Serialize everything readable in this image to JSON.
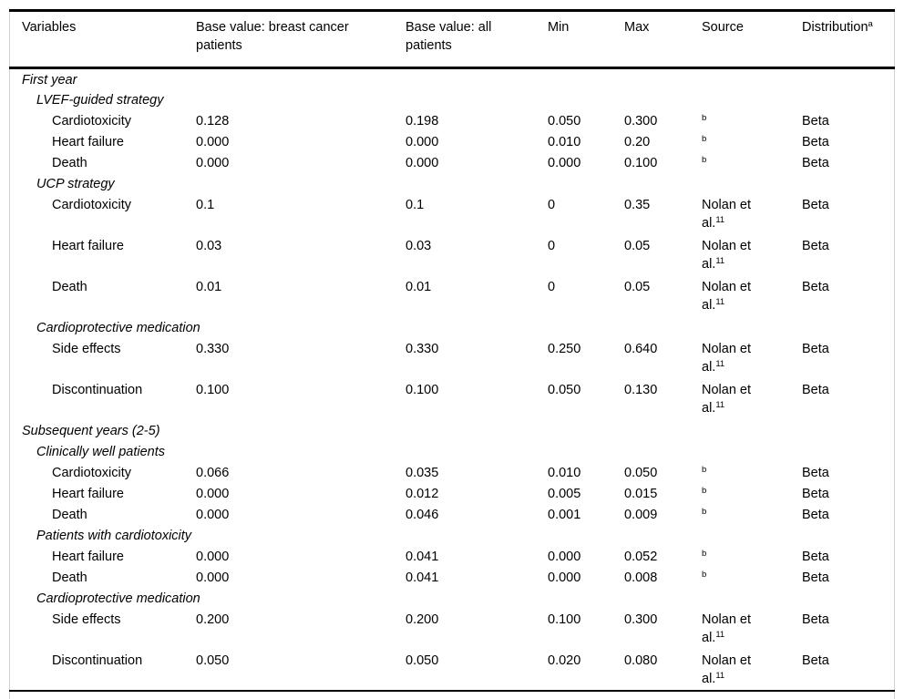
{
  "table": {
    "columns": [
      {
        "id": "variables",
        "label": "Variables"
      },
      {
        "id": "bval-bc",
        "label": "Base value: breast cancer patients"
      },
      {
        "id": "bval-all",
        "label": "Base value: all patients"
      },
      {
        "id": "min",
        "label": "Min"
      },
      {
        "id": "max",
        "label": "Max"
      },
      {
        "id": "source",
        "label": "Source"
      },
      {
        "id": "distribution",
        "label": "Distribution",
        "sup": "a"
      }
    ],
    "rows": [
      {
        "type": "section",
        "label": "First year"
      },
      {
        "type": "subsection",
        "label": "LVEF-guided strategy"
      },
      {
        "type": "data",
        "label": "Cardiotoxicity",
        "base_breast": "0.128",
        "base_all": "0.198",
        "min": "0.050",
        "max": "0.300",
        "source": "",
        "source_sup": "b",
        "distribution": "Beta"
      },
      {
        "type": "data",
        "label": "Heart failure",
        "base_breast": "0.000",
        "base_all": "0.000",
        "min": "0.010",
        "max": "0.20",
        "source": "",
        "source_sup": "b",
        "distribution": "Beta"
      },
      {
        "type": "data",
        "label": "Death",
        "base_breast": "0.000",
        "base_all": "0.000",
        "min": "0.000",
        "max": "0.100",
        "source": "",
        "source_sup": "b",
        "distribution": "Beta"
      },
      {
        "type": "subsection",
        "label": "UCP strategy"
      },
      {
        "type": "data",
        "label": "Cardiotoxicity",
        "base_breast": "0.1",
        "base_all": "0.1",
        "min": "0",
        "max": "0.35",
        "source": "Nolan et al.",
        "source_sup": "11",
        "distribution": "Beta"
      },
      {
        "type": "data",
        "label": "Heart failure",
        "base_breast": "0.03",
        "base_all": "0.03",
        "min": "0",
        "max": "0.05",
        "source": "Nolan et al.",
        "source_sup": "11",
        "distribution": "Beta"
      },
      {
        "type": "data",
        "label": "Death",
        "base_breast": "0.01",
        "base_all": "0.01",
        "min": "0",
        "max": "0.05",
        "source": "Nolan et al.",
        "source_sup": "11",
        "distribution": "Beta"
      },
      {
        "type": "subsection",
        "label": "Cardioprotective medication"
      },
      {
        "type": "data",
        "label": "Side effects",
        "base_breast": "0.330",
        "base_all": "0.330",
        "min": "0.250",
        "max": "0.640",
        "source": "Nolan et al.",
        "source_sup": "11",
        "distribution": "Beta"
      },
      {
        "type": "data",
        "label": "Discontinuation",
        "base_breast": "0.100",
        "base_all": "0.100",
        "min": "0.050",
        "max": "0.130",
        "source": "Nolan et al.",
        "source_sup": "11",
        "distribution": "Beta"
      },
      {
        "type": "section",
        "label": "Subsequent years (2-5)"
      },
      {
        "type": "subsection",
        "label": "Clinically well patients"
      },
      {
        "type": "data",
        "label": "Cardiotoxicity",
        "base_breast": "0.066",
        "base_all": "0.035",
        "min": "0.010",
        "max": "0.050",
        "source": "",
        "source_sup": "b",
        "distribution": "Beta"
      },
      {
        "type": "data",
        "label": "Heart failure",
        "base_breast": "0.000",
        "base_all": "0.012",
        "min": "0.005",
        "max": "0.015",
        "source": "",
        "source_sup": "b",
        "distribution": "Beta"
      },
      {
        "type": "data",
        "label": "Death",
        "base_breast": "0.000",
        "base_all": "0.046",
        "min": "0.001",
        "max": "0.009",
        "source": "",
        "source_sup": "b",
        "distribution": "Beta"
      },
      {
        "type": "subsection",
        "label": "Patients with cardiotoxicity"
      },
      {
        "type": "data",
        "label": "Heart failure",
        "base_breast": "0.000",
        "base_all": "0.041",
        "min": "0.000",
        "max": "0.052",
        "source": "",
        "source_sup": "b",
        "distribution": "Beta"
      },
      {
        "type": "data",
        "label": "Death",
        "base_breast": "0.000",
        "base_all": "0.041",
        "min": "0.000",
        "max": "0.008",
        "source": "",
        "source_sup": "b",
        "distribution": "Beta"
      },
      {
        "type": "subsection",
        "label": "Cardioprotective medication"
      },
      {
        "type": "data",
        "label": "Side effects",
        "base_breast": "0.200",
        "base_all": "0.200",
        "min": "0.100",
        "max": "0.300",
        "source": "Nolan et al.",
        "source_sup": "11",
        "distribution": "Beta"
      },
      {
        "type": "data",
        "label": "Discontinuation",
        "base_breast": "0.050",
        "base_all": "0.050",
        "min": "0.020",
        "max": "0.080",
        "source": "Nolan et al.",
        "source_sup": "11",
        "distribution": "Beta"
      }
    ]
  }
}
